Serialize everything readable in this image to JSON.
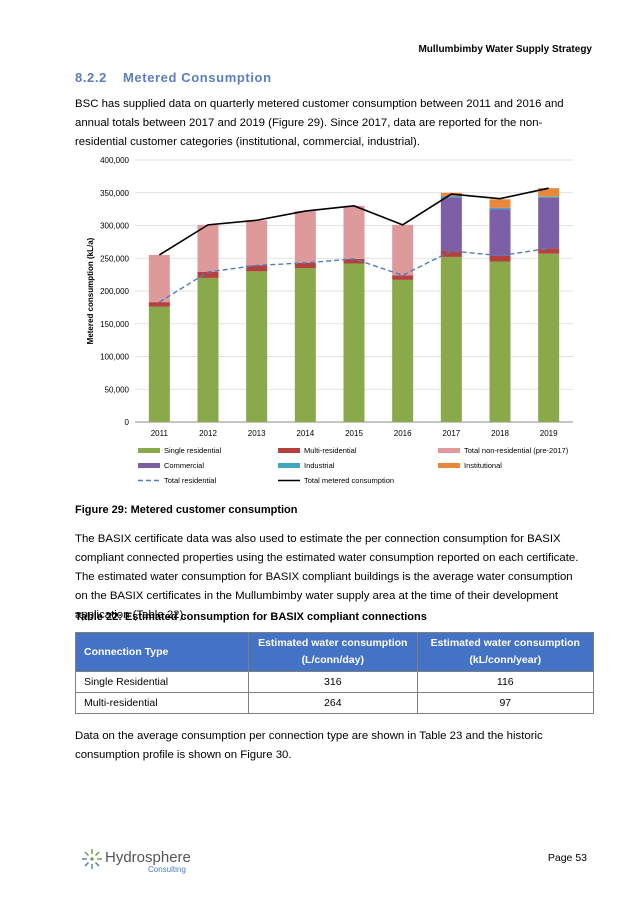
{
  "header": {
    "title": "Mullumbimby Water Supply Strategy"
  },
  "section": {
    "number": "8.2.2",
    "title": "Metered Consumption"
  },
  "paragraphs": {
    "p1": "BSC has supplied data on quarterly metered customer consumption between 2011 and 2016 and annual totals between 2017 and 2019 (Figure 29). Since 2017, data are reported for the non-residential customer categories (institutional, commercial, industrial).",
    "p2": "The BASIX certificate data was also used to estimate the per connection consumption for BASIX compliant connected properties using the estimated water consumption reported on each certificate. The estimated water consumption for BASIX compliant buildings is the average water consumption on the BASIX certificates in the Mullumbimby water supply area at the time of their development application (Table 22).",
    "p3": "Data on the average consumption per connection type are shown in Table 23 and the historic consumption profile is shown on Figure 30."
  },
  "figure": {
    "caption": "Figure 29: Metered customer consumption"
  },
  "table": {
    "caption": "Table 22: Estimated consumption for BASIX compliant connections",
    "headers": {
      "col1": "Connection Type",
      "col2": "Estimated water consumption (L/conn/day)",
      "col3": "Estimated water consumption (kL/conn/year)"
    },
    "rows": [
      {
        "type": "Single Residential",
        "lday": "316",
        "klyear": "116"
      },
      {
        "type": "Multi-residential",
        "lday": "264",
        "klyear": "97"
      }
    ]
  },
  "footer": {
    "logo_main": "Hydrosphere",
    "logo_sub": "Consulting",
    "page": "Page 53"
  },
  "chart_data": {
    "type": "bar",
    "stacked": true,
    "categories": [
      "2011",
      "2012",
      "2013",
      "2014",
      "2015",
      "2016",
      "2017",
      "2018",
      "2019"
    ],
    "ylabel": "Metered consumption (kL/a)",
    "ylim": [
      0,
      400000
    ],
    "yticks": [
      "0",
      "50,000",
      "100,000",
      "150,000",
      "200,000",
      "250,000",
      "300,000",
      "350,000",
      "400,000"
    ],
    "grid": true,
    "legend_position": "bottom",
    "series": [
      {
        "name": "Single residential",
        "kind": "bar",
        "color": "#8aa94a",
        "values": [
          176000,
          220000,
          230000,
          235000,
          242000,
          217000,
          252000,
          245000,
          257000
        ]
      },
      {
        "name": "Multi-residential",
        "kind": "bar",
        "color": "#b5413f",
        "values": [
          7000,
          9000,
          9000,
          8000,
          7000,
          7000,
          9000,
          9000,
          8000
        ]
      },
      {
        "name": "Total non-residential (pre-2017)",
        "kind": "bar",
        "color": "#de9a9a",
        "values": [
          72000,
          72000,
          69000,
          79000,
          81000,
          77000,
          0,
          0,
          0
        ]
      },
      {
        "name": "Commercial",
        "kind": "bar",
        "color": "#7d5fa6",
        "values": [
          0,
          0,
          0,
          0,
          0,
          0,
          82000,
          71000,
          77000
        ]
      },
      {
        "name": "Industrial",
        "kind": "bar",
        "color": "#42a5c1",
        "values": [
          0,
          0,
          0,
          0,
          0,
          0,
          2000,
          2000,
          2000
        ]
      },
      {
        "name": "Institutional",
        "kind": "bar",
        "color": "#e8883a",
        "values": [
          0,
          0,
          0,
          0,
          0,
          0,
          5000,
          13000,
          13000
        ]
      },
      {
        "name": "Total residential",
        "kind": "line",
        "dashed": true,
        "color": "#4f7cc2",
        "values": [
          183000,
          229000,
          239000,
          243000,
          249000,
          224000,
          261000,
          254000,
          265000
        ]
      },
      {
        "name": "Total metered consumption",
        "kind": "line",
        "dashed": false,
        "color": "#000000",
        "values": [
          255000,
          301000,
          308000,
          322000,
          330000,
          301000,
          348000,
          341000,
          357000
        ]
      }
    ]
  }
}
